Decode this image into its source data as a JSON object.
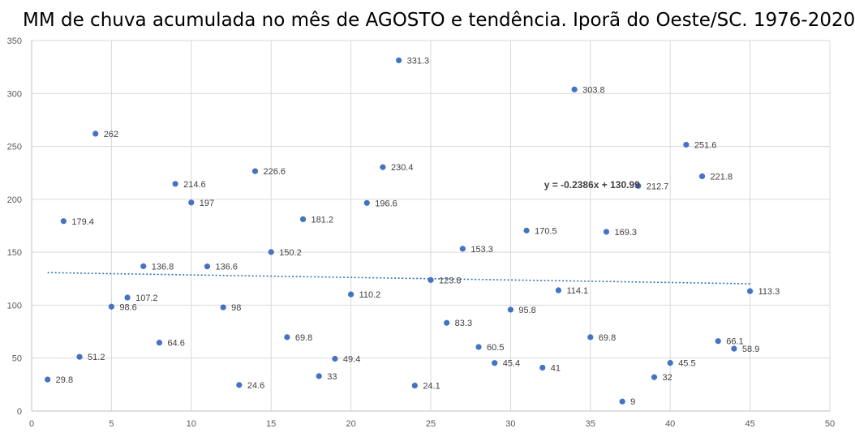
{
  "chart_data": {
    "type": "scatter",
    "title": "MM de chuva acumulada no mês de AGOSTO e tendência. Iporã do Oeste/SC. 1976-2020",
    "xlim": [
      0,
      50
    ],
    "ylim": [
      0,
      350
    ],
    "x_ticks": [
      0,
      5,
      10,
      15,
      20,
      25,
      30,
      35,
      40,
      45,
      50
    ],
    "y_ticks": [
      0,
      50,
      100,
      150,
      200,
      250,
      300,
      350
    ],
    "grid": true,
    "marker_color": "#4472C4",
    "trendline_color": "#2E75B6",
    "points": [
      {
        "x": 1,
        "y": 29.8,
        "label": "29.8"
      },
      {
        "x": 2,
        "y": 179.4,
        "label": "179.4"
      },
      {
        "x": 3,
        "y": 51.2,
        "label": "51.2"
      },
      {
        "x": 4,
        "y": 262,
        "label": "262"
      },
      {
        "x": 5,
        "y": 98.6,
        "label": "98.6"
      },
      {
        "x": 6,
        "y": 107.2,
        "label": "107.2"
      },
      {
        "x": 7,
        "y": 136.8,
        "label": "136.8"
      },
      {
        "x": 8,
        "y": 64.6,
        "label": "64.6"
      },
      {
        "x": 9,
        "y": 214.6,
        "label": "214.6"
      },
      {
        "x": 10,
        "y": 197,
        "label": "197"
      },
      {
        "x": 11,
        "y": 136.6,
        "label": "136.6"
      },
      {
        "x": 12,
        "y": 98,
        "label": "98"
      },
      {
        "x": 13,
        "y": 24.6,
        "label": "24.6"
      },
      {
        "x": 14,
        "y": 226.6,
        "label": "226.6"
      },
      {
        "x": 15,
        "y": 150.2,
        "label": "150.2"
      },
      {
        "x": 16,
        "y": 69.8,
        "label": "69.8"
      },
      {
        "x": 17,
        "y": 181.2,
        "label": "181.2"
      },
      {
        "x": 18,
        "y": 33,
        "label": "33"
      },
      {
        "x": 19,
        "y": 49.4,
        "label": "49.4"
      },
      {
        "x": 20,
        "y": 110.2,
        "label": "110.2"
      },
      {
        "x": 21,
        "y": 196.6,
        "label": "196.6"
      },
      {
        "x": 22,
        "y": 230.4,
        "label": "230.4"
      },
      {
        "x": 23,
        "y": 331.3,
        "label": "331.3"
      },
      {
        "x": 24,
        "y": 24.1,
        "label": "24.1"
      },
      {
        "x": 25,
        "y": 123.8,
        "label": "123.8"
      },
      {
        "x": 26,
        "y": 83.3,
        "label": "83.3"
      },
      {
        "x": 27,
        "y": 153.3,
        "label": "153.3"
      },
      {
        "x": 28,
        "y": 60.5,
        "label": "60.5"
      },
      {
        "x": 29,
        "y": 45.4,
        "label": "45.4"
      },
      {
        "x": 30,
        "y": 95.8,
        "label": "95.8"
      },
      {
        "x": 31,
        "y": 170.5,
        "label": "170.5"
      },
      {
        "x": 32,
        "y": 41,
        "label": "41"
      },
      {
        "x": 33,
        "y": 114.1,
        "label": "114.1"
      },
      {
        "x": 34,
        "y": 303.8,
        "label": "303.8"
      },
      {
        "x": 35,
        "y": 69.8,
        "label": "69.8"
      },
      {
        "x": 36,
        "y": 169.3,
        "label": "169.3"
      },
      {
        "x": 37,
        "y": 9,
        "label": "9"
      },
      {
        "x": 38,
        "y": 212.7,
        "label": "212.7"
      },
      {
        "x": 39,
        "y": 32,
        "label": "32"
      },
      {
        "x": 40,
        "y": 45.5,
        "label": "45.5"
      },
      {
        "x": 41,
        "y": 251.6,
        "label": "251.6"
      },
      {
        "x": 42,
        "y": 221.8,
        "label": "221.8"
      },
      {
        "x": 43,
        "y": 66.1,
        "label": "66.1"
      },
      {
        "x": 44,
        "y": 58.9,
        "label": "58.9"
      },
      {
        "x": 45,
        "y": 113.3,
        "label": "113.3"
      }
    ],
    "trendline": {
      "type": "linear",
      "slope": -0.2386,
      "intercept": 130.99,
      "x_range": [
        1,
        45
      ],
      "equation": "y = -0.2386x + 130.99"
    }
  }
}
